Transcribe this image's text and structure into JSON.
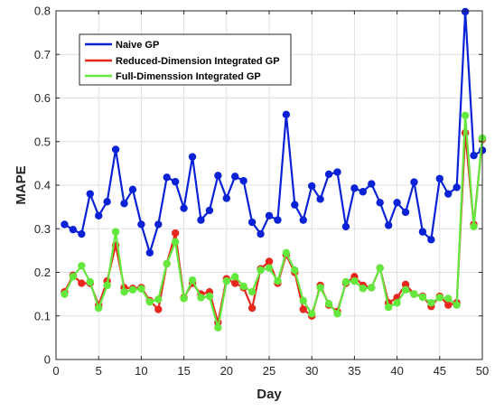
{
  "chart_data": {
    "type": "line",
    "title": "",
    "xlabel": "Day",
    "ylabel": "MAPE",
    "xlim": [
      0,
      50
    ],
    "ylim": [
      0,
      0.8
    ],
    "xticks": [
      0,
      5,
      10,
      15,
      20,
      25,
      30,
      35,
      40,
      45,
      50
    ],
    "yticks": [
      0,
      0.1,
      0.2,
      0.3,
      0.4,
      0.5,
      0.6,
      0.7,
      0.8
    ],
    "grid": true,
    "legend_position": "top-left",
    "x": [
      1,
      2,
      3,
      4,
      5,
      6,
      7,
      8,
      9,
      10,
      11,
      12,
      13,
      14,
      15,
      16,
      17,
      18,
      19,
      20,
      21,
      22,
      23,
      24,
      25,
      26,
      27,
      28,
      29,
      30,
      31,
      32,
      33,
      34,
      35,
      36,
      37,
      38,
      39,
      40,
      41,
      42,
      43,
      44,
      45,
      46,
      47,
      48,
      49,
      50
    ],
    "series": [
      {
        "name": "Naive GP",
        "color": "#0a22d6",
        "values": [
          0.31,
          0.298,
          0.288,
          0.38,
          0.33,
          0.362,
          0.482,
          0.358,
          0.39,
          0.31,
          0.245,
          0.31,
          0.418,
          0.408,
          0.347,
          0.465,
          0.32,
          0.342,
          0.422,
          0.37,
          0.42,
          0.41,
          0.315,
          0.288,
          0.33,
          0.32,
          0.562,
          0.355,
          0.32,
          0.398,
          0.368,
          0.425,
          0.43,
          0.305,
          0.393,
          0.385,
          0.403,
          0.36,
          0.308,
          0.36,
          0.338,
          0.407,
          0.293,
          0.275,
          0.415,
          0.38,
          0.395,
          0.798,
          0.468,
          0.48
        ]
      },
      {
        "name": "Reduced-Dimension Integrated GP",
        "color": "#e8281e",
        "values": [
          0.155,
          0.193,
          0.175,
          0.175,
          0.125,
          0.18,
          0.262,
          0.165,
          0.163,
          0.165,
          0.135,
          0.115,
          0.22,
          0.29,
          0.142,
          0.175,
          0.15,
          0.155,
          0.085,
          0.185,
          0.175,
          0.165,
          0.118,
          0.208,
          0.225,
          0.175,
          0.24,
          0.2,
          0.115,
          0.1,
          0.17,
          0.125,
          0.11,
          0.175,
          0.19,
          0.17,
          0.165,
          0.21,
          0.13,
          0.142,
          0.172,
          0.15,
          0.145,
          0.122,
          0.145,
          0.125,
          0.13,
          0.52,
          0.31,
          0.505
        ]
      },
      {
        "name": "Full-Dimenssion Integrated GP",
        "color": "#63e83d",
        "values": [
          0.15,
          0.19,
          0.215,
          0.178,
          0.118,
          0.17,
          0.293,
          0.155,
          0.16,
          0.162,
          0.132,
          0.138,
          0.22,
          0.27,
          0.14,
          0.182,
          0.142,
          0.145,
          0.073,
          0.18,
          0.19,
          0.168,
          0.155,
          0.205,
          0.21,
          0.18,
          0.245,
          0.205,
          0.135,
          0.105,
          0.165,
          0.128,
          0.105,
          0.178,
          0.18,
          0.163,
          0.165,
          0.21,
          0.12,
          0.13,
          0.16,
          0.15,
          0.143,
          0.13,
          0.142,
          0.14,
          0.125,
          0.56,
          0.305,
          0.508
        ]
      }
    ]
  }
}
